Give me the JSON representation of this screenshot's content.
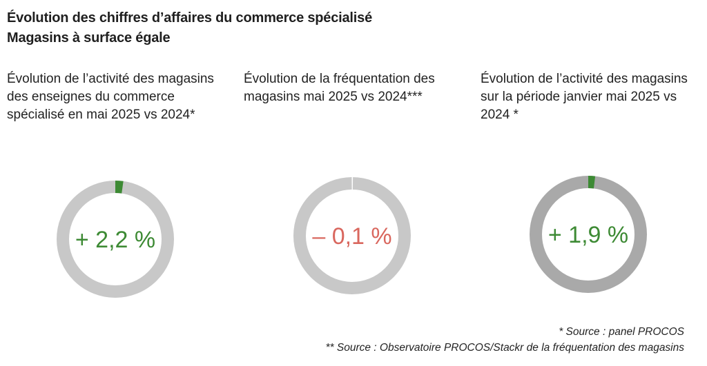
{
  "header": {
    "title_line1": "Évolution des chiffres d’affaires du commerce spécialisé",
    "title_line2": "Magasins à surface égale"
  },
  "chart_data": [
    {
      "type": "donut",
      "heading": "Évolution de l’activité des magasins des enseignes du commerce spécialisé en mai 2025 vs 2024*",
      "value": 2.2,
      "label": "+ 2,2 %",
      "value_color": "#3d8a34",
      "segment_color": "#3d8a34",
      "ring_color": "#c8c8c8"
    },
    {
      "type": "donut",
      "heading": "Évolution de la fréquentation des magasins mai 2025 vs 2024***",
      "value": -0.1,
      "label": "– 0,1 %",
      "value_color": "#d9675e",
      "segment_color": "#d9675e",
      "ring_color": "#c8c8c8"
    },
    {
      "type": "donut",
      "heading": "Évolution de l’activité des magasins sur la période janvier mai 2025 vs 2024 *",
      "value": 1.9,
      "label": "+ 1,9 %",
      "value_color": "#3d8a34",
      "segment_color": "#3d8a34",
      "ring_color": "#a9a9a9"
    }
  ],
  "footnotes": {
    "line1": "* Source : panel PROCOS",
    "line2": "** Source : Observatoire PROCOS/Stackr de la fréquentation des magasins"
  }
}
